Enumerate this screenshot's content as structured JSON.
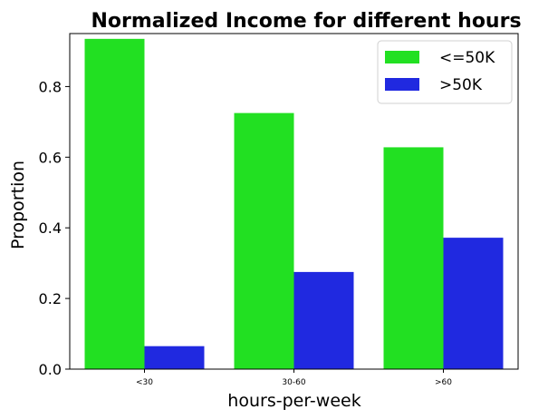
{
  "chart_data": {
    "type": "bar",
    "title": "Normalized Income for different hours",
    "xlabel": "hours-per-week",
    "ylabel": "Proportion",
    "categories": [
      "<30",
      "30-60",
      ">60"
    ],
    "series": [
      {
        "name": "<=50K",
        "values": [
          0.935,
          0.725,
          0.628
        ],
        "color": "#22e022"
      },
      {
        "name": ">50K",
        "values": [
          0.065,
          0.275,
          0.372
        ],
        "color": "#2029e0"
      }
    ],
    "ylim": [
      0,
      0.95
    ],
    "yticks": [
      0.0,
      0.2,
      0.4,
      0.6,
      0.8
    ],
    "ytick_labels": [
      "0.0",
      "0.2",
      "0.4",
      "0.6",
      "0.8"
    ],
    "grid": false,
    "legend_position": "top-right"
  }
}
